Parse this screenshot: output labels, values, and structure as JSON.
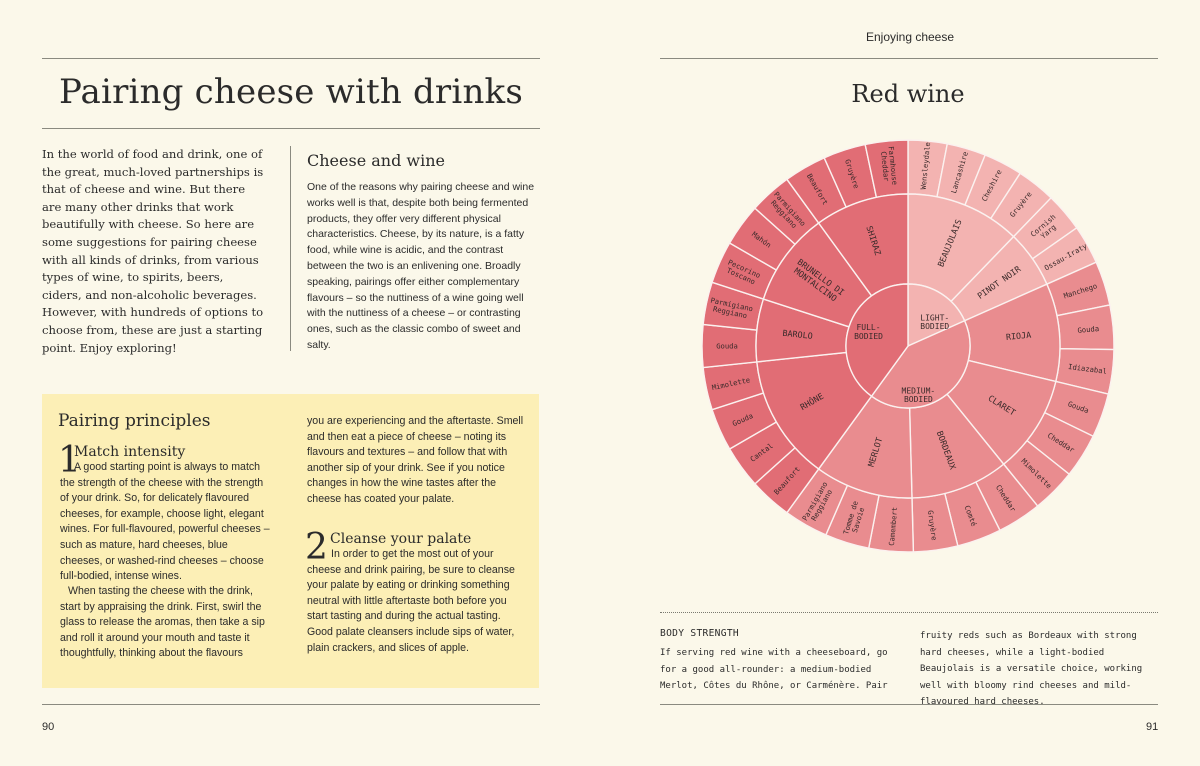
{
  "running_head": "Enjoying cheese",
  "left_page": {
    "title": "Pairing cheese with drinks",
    "intro": "In the world of food and drink, one of the great, much-loved partnerships is that of cheese and wine. But there are many other drinks that work beautifully with cheese. So here are some suggestions for pairing cheese with all kinds of drinks, from various types of wine, to spirits, beers, ciders, and non-alcoholic beverages. However, with hundreds of options to choose from, these are just a starting point. Enjoy exploring!",
    "cheese_and_wine": {
      "heading": "Cheese and wine",
      "body": "One of the reasons why pairing cheese and wine works well is that, despite both being fermented products, they offer very different physical characteristics. Cheese, by its nature, is a fatty food, while wine is acidic, and the contrast between the two is an enlivening one. Broadly speaking, pairings offer either complementary flavours – so the nuttiness of a wine going well with the nuttiness of a cheese – or contrasting ones, such as the classic combo of sweet and salty."
    },
    "principles": {
      "heading": "Pairing principles",
      "step1": {
        "number": "1",
        "heading": "Match intensity",
        "body": "A good starting point is always to match the strength of the cheese with the strength of your drink. So, for delicately flavoured cheeses, for example, choose light, elegant wines. For full-flavoured, powerful cheeses – such as mature, hard cheeses, blue cheeses, or washed-rind cheeses – choose full-bodied, intense wines.",
        "body2": "When tasting the cheese with the drink, start by appraising the drink. First, swirl the glass to release the aromas, then take a sip and roll it around your mouth and taste it thoughtfully, thinking about the flavours"
      },
      "col2_continued": "you are experiencing and the aftertaste. Smell and then eat a piece of cheese – noting its flavours and textures – and follow that with another sip of your drink. See if you notice changes in how the wine tastes after the cheese has coated your palate.",
      "step2": {
        "number": "2",
        "heading": "Cleanse your palate",
        "body": "In order to get the most out of your cheese and drink pairing, be sure to cleanse your palate by eating or drinking something neutral with little aftertaste both before you start tasting and during the actual tasting. Good palate cleansers include sips of water, plain crackers, and slices of apple."
      },
      "page_number": "90"
    }
  },
  "right_page": {
    "title": "Red wine",
    "page_number": "91",
    "body_strength": {
      "label": "BODY STRENGTH",
      "col1": "If serving red wine with a cheeseboard, go for a good all-rounder: a medium-bodied Merlot, Côtes du Rhône, or Carménère. Pair",
      "col2": "fruity reds such as Bordeaux with strong hard cheeses, while a light-bodied Beaujolais is a versatile choice, working well with bloomy rind cheeses and mild-flavoured hard cheeses."
    },
    "wheel": {
      "colors": {
        "light": "#f3b3b1",
        "medium": "#e98c8f",
        "full": "#e16d75",
        "line": "#fbf1ef",
        "text": "#3a2a2a"
      },
      "groups": [
        {
          "body": "LIGHT-BODIED",
          "shade": "light",
          "wines": [
            {
              "name": "BEAUJOLAIS",
              "cheeses": [
                "Wensleydale",
                "Lancashire",
                "Cheshire",
                "Gruyère"
              ]
            },
            {
              "name": "PINOT NOIR",
              "cheeses": [
                "Cornish Yarg",
                "Ossau-Iraty"
              ]
            }
          ]
        },
        {
          "body": "MEDIUM-BODIED",
          "shade": "medium",
          "wines": [
            {
              "name": "RIOJA",
              "cheeses": [
                "Manchego",
                "Gouda",
                "Idiazabal"
              ]
            },
            {
              "name": "CLARET",
              "cheeses": [
                "Gouda",
                "Cheddar",
                "Mimolette"
              ]
            },
            {
              "name": "BORDEAUX",
              "cheeses": [
                "Cheddar",
                "Comté",
                "Gruyère"
              ]
            },
            {
              "name": "MERLOT",
              "cheeses": [
                "Camembert",
                "Tomme de Savoie",
                "Parmigiano Reggiano"
              ]
            }
          ]
        },
        {
          "body": "FULL-BODIED",
          "shade": "full",
          "wines": [
            {
              "name": "RHÔNE",
              "cheeses": [
                "Beaufort",
                "Cantal",
                "Gouda",
                "Mimolette"
              ]
            },
            {
              "name": "BAROLO",
              "cheeses": [
                "Gouda",
                "Parmigiano Reggiano"
              ]
            },
            {
              "name": "BRUNELLO DI MONTALCINO",
              "cheeses": [
                "Pecorino Toscano",
                "Mahón",
                "Parmigiano Reggiano"
              ]
            },
            {
              "name": "SHIRAZ",
              "cheeses": [
                "Beaufort",
                "Gruyère",
                "Farmhouse Cheddar"
              ]
            }
          ]
        }
      ]
    }
  }
}
